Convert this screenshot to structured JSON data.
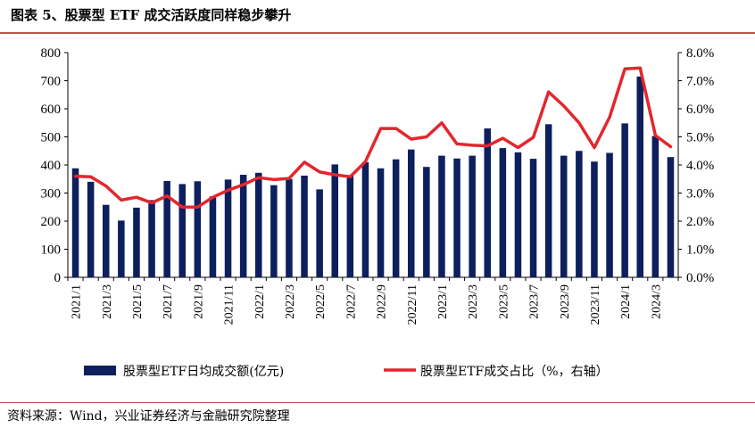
{
  "header": {
    "title": "图表 5、股票型 ETF 成交活跃度同样稳步攀升"
  },
  "footer": {
    "source": "资料来源：Wind，兴业证券经济与金融研究院整理"
  },
  "chart_data": {
    "type": "bar+line",
    "title": "",
    "xlabel": "",
    "ylabel_left": "",
    "ylabel_right": "",
    "categories": [
      "2021/1",
      "2021/2",
      "2021/3",
      "2021/4",
      "2021/5",
      "2021/6",
      "2021/7",
      "2021/8",
      "2021/9",
      "2021/10",
      "2021/11",
      "2021/12",
      "2022/1",
      "2022/2",
      "2022/3",
      "2022/4",
      "2022/5",
      "2022/6",
      "2022/7",
      "2022/8",
      "2022/9",
      "2022/10",
      "2022/11",
      "2022/12",
      "2023/1",
      "2023/2",
      "2023/3",
      "2023/4",
      "2023/5",
      "2023/6",
      "2023/7",
      "2023/8",
      "2023/9",
      "2023/10",
      "2023/11",
      "2023/12",
      "2024/1",
      "2024/2",
      "2024/3",
      "2024/4"
    ],
    "x_tick_labels": [
      "2021/1",
      "2021/3",
      "2021/5",
      "2021/7",
      "2021/9",
      "2021/11",
      "2022/1",
      "2022/3",
      "2022/5",
      "2022/7",
      "2022/9",
      "2022/11",
      "2023/1",
      "2023/3",
      "2023/5",
      "2023/7",
      "2023/9",
      "2023/11",
      "2024/1",
      "2024/3"
    ],
    "y_left_ticks": [
      "0",
      "100",
      "200",
      "300",
      "400",
      "500",
      "600",
      "700",
      "800"
    ],
    "y_right_ticks": [
      "0.0%",
      "1.0%",
      "2.0%",
      "3.0%",
      "4.0%",
      "5.0%",
      "6.0%",
      "7.0%",
      "8.0%"
    ],
    "ylim_left": [
      0,
      800
    ],
    "ylim_right": [
      0,
      8
    ],
    "series": [
      {
        "name": "股票型ETF日均成交额(亿元)",
        "type": "bar",
        "axis": "left",
        "color": "#0d1f5c",
        "values": [
          388,
          340,
          258,
          202,
          248,
          275,
          343,
          332,
          342,
          288,
          348,
          365,
          372,
          328,
          350,
          362,
          313,
          402,
          362,
          410,
          388,
          420,
          455,
          393,
          433,
          423,
          433,
          530,
          460,
          445,
          422,
          545,
          433,
          450,
          412,
          443,
          548,
          715,
          503,
          428
        ]
      },
      {
        "name": "股票型ETF成交占比（%，右轴）",
        "type": "line",
        "axis": "right",
        "color": "#e3262d",
        "values": [
          3.6,
          3.58,
          3.25,
          2.75,
          2.85,
          2.65,
          2.9,
          2.5,
          2.5,
          2.85,
          3.1,
          3.3,
          3.55,
          3.48,
          3.52,
          4.1,
          3.75,
          3.65,
          3.58,
          4.12,
          5.3,
          5.3,
          4.92,
          5.0,
          5.5,
          4.75,
          4.7,
          4.68,
          4.95,
          4.62,
          4.98,
          6.6,
          6.1,
          5.5,
          4.62,
          5.7,
          7.42,
          7.45,
          5.05,
          4.65
        ]
      }
    ],
    "grid": false,
    "legend_position": "bottom"
  }
}
